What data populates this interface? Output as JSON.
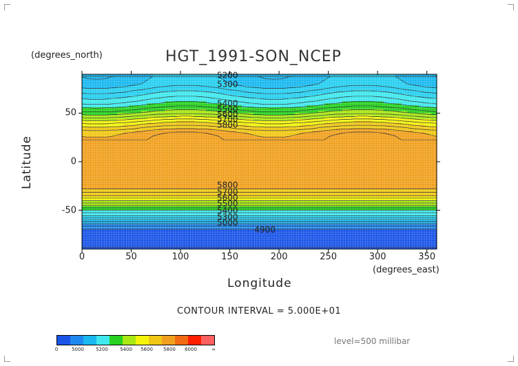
{
  "title": "HGT_1991-SON_NCEP",
  "y_unit": "(degrees_north)",
  "x_unit": "(degrees_east)",
  "contour_interval": "CONTOUR INTERVAL = 5.000E+01",
  "level_text": "level=500 millibar",
  "chart_data": {
    "type": "heatmap",
    "title": "HGT_1991-SON_NCEP",
    "xlabel": "Longitude",
    "ylabel": "Latitude",
    "xlim": [
      0,
      360
    ],
    "ylim": [
      -90,
      90
    ],
    "x_ticks": [
      0,
      50,
      100,
      150,
      200,
      250,
      300,
      350
    ],
    "y_ticks": [
      50,
      0,
      -50
    ],
    "contour_labels": [
      {
        "lon": 137,
        "lat": 86,
        "text": "5200"
      },
      {
        "lon": 137,
        "lat": 77,
        "text": "5300"
      },
      {
        "lon": 137,
        "lat": 57,
        "text": "5400"
      },
      {
        "lon": 137,
        "lat": 51,
        "text": "5500"
      },
      {
        "lon": 137,
        "lat": 46,
        "text": "5600"
      },
      {
        "lon": 137,
        "lat": 41,
        "text": "5700"
      },
      {
        "lon": 137,
        "lat": 35,
        "text": "5800"
      },
      {
        "lon": 137,
        "lat": -27,
        "text": "5800"
      },
      {
        "lon": 137,
        "lat": -34,
        "text": "5700"
      },
      {
        "lon": 137,
        "lat": -40,
        "text": "5600"
      },
      {
        "lon": 137,
        "lat": -46,
        "text": "5500"
      },
      {
        "lon": 137,
        "lat": -53,
        "text": "5400"
      },
      {
        "lon": 137,
        "lat": -60,
        "text": "5300"
      },
      {
        "lon": 137,
        "lat": -66,
        "text": "5000"
      },
      {
        "lon": 175,
        "lat": -73,
        "text": "4900"
      }
    ],
    "colorbar": {
      "labels": [
        "0",
        "5000",
        "5200",
        "5400",
        "5600",
        "5800",
        "6000",
        "∞"
      ],
      "colors": [
        "#1a55e8",
        "#1f88f0",
        "#19b8f0",
        "#3fe8ee",
        "#26d21f",
        "#a9e812",
        "#f4f40a",
        "#f0c814",
        "#f0a01e",
        "#f26b12",
        "#ff1e00",
        "#ff6060"
      ]
    }
  }
}
